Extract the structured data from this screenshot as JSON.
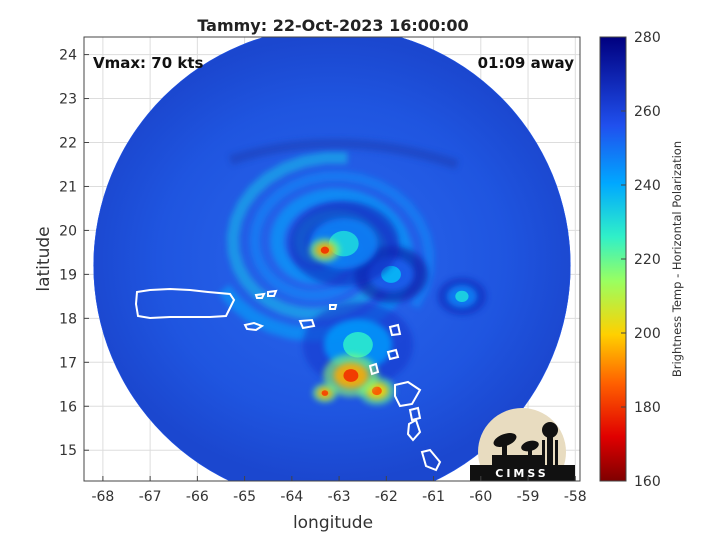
{
  "chart_data": {
    "type": "heatmap",
    "title": "Tammy: 22-Oct-2023 16:00:00",
    "xlabel": "longitude",
    "ylabel": "latitude",
    "xlim": [
      -68.4,
      -57.9
    ],
    "ylim": [
      14.3,
      24.4
    ],
    "x_ticks": [
      -68,
      -67,
      -66,
      -65,
      -64,
      -63,
      -62,
      -61,
      -60,
      -59,
      -58
    ],
    "y_ticks": [
      15,
      16,
      17,
      18,
      19,
      20,
      21,
      22,
      23,
      24
    ],
    "grid": true,
    "annotations": {
      "left": "Vmax: 70 kts",
      "right": "01:09 away"
    },
    "colorbar": {
      "label": "Brightness Temp - Horizontal Polarization",
      "min": 160,
      "max": 280,
      "ticks": [
        160,
        180,
        200,
        220,
        240,
        260,
        280
      ]
    },
    "swath": {
      "center_lon": -63.15,
      "center_lat": 19.2,
      "radius_deg": 5.05
    },
    "features": [
      {
        "lon": -63.3,
        "lat": 19.55,
        "tb": 180,
        "spread": 0.25
      },
      {
        "lon": -62.75,
        "lat": 16.7,
        "tb": 180,
        "spread": 0.45
      },
      {
        "lon": -62.2,
        "lat": 16.35,
        "tb": 185,
        "spread": 0.3
      },
      {
        "lon": -63.3,
        "lat": 16.3,
        "tb": 182,
        "spread": 0.2
      },
      {
        "lon": -62.9,
        "lat": 19.7,
        "tb": 232,
        "spread": 0.9
      },
      {
        "lon": -61.9,
        "lat": 19.0,
        "tb": 238,
        "spread": 0.6
      },
      {
        "lon": -60.4,
        "lat": 18.5,
        "tb": 232,
        "spread": 0.4
      },
      {
        "lon": -62.6,
        "lat": 17.4,
        "tb": 228,
        "spread": 0.9
      }
    ]
  },
  "logo": {
    "text": "CIMSS"
  }
}
